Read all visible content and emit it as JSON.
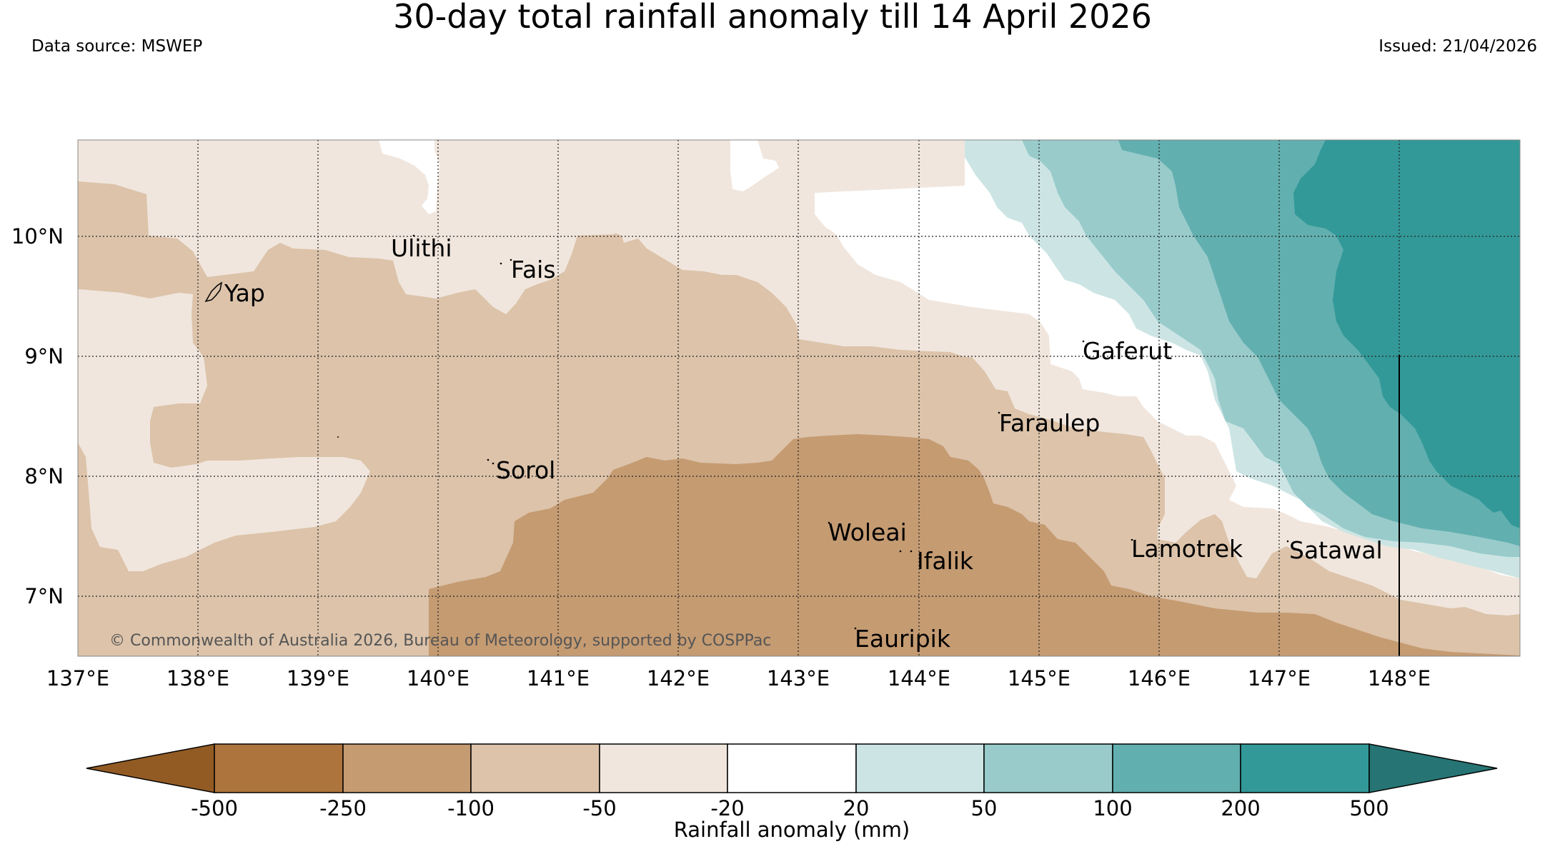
{
  "title": "30-day total rainfall anomaly till 14 April 2026",
  "data_source": "Data source: MSWEP",
  "issued": "Issued: 21/04/2026",
  "copyright": "© Commonwealth of Australia 2026, Bureau of Meteorology, supported by COSPPac",
  "x_ticks": [
    "137°E",
    "138°E",
    "139°E",
    "140°E",
    "141°E",
    "142°E",
    "143°E",
    "144°E",
    "145°E",
    "146°E",
    "147°E",
    "148°E"
  ],
  "y_ticks": [
    "10°N",
    "9°N",
    "8°N",
    "7°N"
  ],
  "places": [
    "Ulithi",
    "Fais",
    "Yap",
    "Gaferut",
    "Faraulep",
    "Sorol",
    "Woleai",
    "Ifalik",
    "Lamotrek",
    "Satawal",
    "Eauripik"
  ],
  "colorbar": {
    "label": "Rainfall anomaly (mm)",
    "ticks": [
      "-500",
      "-250",
      "-100",
      "-50",
      "-20",
      "20",
      "50",
      "100",
      "200",
      "500"
    ],
    "colors": [
      "#935b24",
      "#ad743d",
      "#c59b72",
      "#dcc3aa",
      "#f0e6dd",
      "#ffffff",
      "#cce5e4",
      "#99cbcb",
      "#62afaf",
      "#329998",
      "#267574"
    ]
  }
}
